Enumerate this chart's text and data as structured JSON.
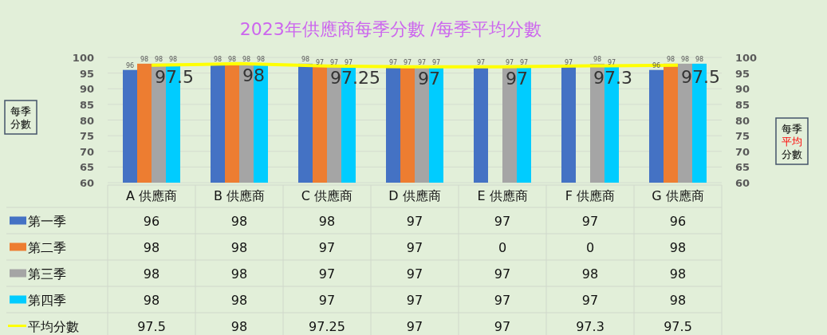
{
  "chart_data": {
    "type": "bar",
    "title": "2023年供應商每季分數 /每季平均分數",
    "ylabel": "每季分數",
    "y2label": "每季平均分數",
    "categories": [
      "A 供應商",
      "B 供應商",
      "C 供應商",
      "D 供應商",
      "E 供應商",
      "F 供應商",
      "G 供應商"
    ],
    "series": [
      {
        "name": "第一季",
        "color": "#4472c4",
        "values": [
          96,
          98,
          98,
          97,
          97,
          97,
          96
        ],
        "value_labels": [
          "96",
          "98",
          "98",
          "97",
          "97",
          "97",
          "96"
        ]
      },
      {
        "name": "第二季",
        "color": "#ed7d31",
        "values": [
          98,
          98,
          97,
          97,
          null,
          null,
          98
        ],
        "value_labels": [
          "98",
          "98",
          "97",
          "97",
          "0",
          "0",
          "98"
        ]
      },
      {
        "name": "第三季",
        "color": "#a5a5a5",
        "values": [
          98,
          98,
          97,
          97,
          97,
          98,
          98
        ],
        "value_labels": [
          "98",
          "98",
          "97",
          "97",
          "97",
          "98",
          "98"
        ]
      },
      {
        "name": "第四季",
        "color": "#00ccff",
        "values": [
          98,
          98,
          97,
          97,
          97,
          97,
          98
        ],
        "value_labels": [
          "98",
          "98",
          "97",
          "97",
          "97",
          "97",
          "98"
        ]
      },
      {
        "name": "平均分數",
        "type": "line",
        "axis": "y2",
        "color": "#ffff00",
        "values": [
          97.5,
          98,
          97.25,
          97,
          97,
          97.3,
          97.5
        ],
        "value_labels": [
          "97.5",
          "98",
          "97.25",
          "97",
          "97",
          "97.3",
          "97.5"
        ]
      }
    ],
    "annotations": [
      {
        "text": "96",
        "x": "A 供應商",
        "y": 96
      },
      {
        "text": "98",
        "x": "A 供應商",
        "y": 98
      },
      {
        "text": "98",
        "x": "A 供應商",
        "y": 98
      },
      {
        "text": "98",
        "x": "A 供應商",
        "y": 98
      },
      {
        "text": "97.5",
        "x": "A 供應商",
        "y": 97.5
      },
      {
        "text": "98",
        "x": "B 供應商",
        "y": 98
      },
      {
        "text": "98",
        "x": "B 供應商",
        "y": 98
      },
      {
        "text": "98",
        "x": "B 供應商",
        "y": 98
      },
      {
        "text": "98",
        "x": "B 供應商",
        "y": 98
      },
      {
        "text": "98",
        "x": "B 供應商",
        "y": 98
      },
      {
        "text": "98",
        "x": "C 供應商",
        "y": 98
      },
      {
        "text": "97",
        "x": "C 供應商",
        "y": 97
      },
      {
        "text": "97",
        "x": "C 供應商",
        "y": 97
      },
      {
        "text": "97",
        "x": "C 供應商",
        "y": 97
      },
      {
        "text": "97.25",
        "x": "C 供應商",
        "y": 97.25
      },
      {
        "text": "97",
        "x": "D 供應商",
        "y": 97
      },
      {
        "text": "97",
        "x": "D 供應商",
        "y": 97
      },
      {
        "text": "97",
        "x": "D 供應商",
        "y": 97
      },
      {
        "text": "97",
        "x": "D 供應商",
        "y": 97
      },
      {
        "text": "97",
        "x": "D 供應商",
        "y": 97
      },
      {
        "text": "97",
        "x": "E 供應商",
        "y": 97
      },
      {
        "text": "97",
        "x": "E 供應商",
        "y": 97
      },
      {
        "text": "97",
        "x": "E 供應商",
        "y": 97
      },
      {
        "text": "97",
        "x": "E 供應商",
        "y": 97
      },
      {
        "text": "97",
        "x": "F 供應商",
        "y": 97
      },
      {
        "text": "98",
        "x": "F 供應商",
        "y": 98
      },
      {
        "text": "97",
        "x": "F 供應商",
        "y": 97
      },
      {
        "text": "97.3",
        "x": "F 供應商",
        "y": 97.3
      },
      {
        "text": "96",
        "x": "G 供應商",
        "y": 96
      },
      {
        "text": "98",
        "x": "G 供應商",
        "y": 98
      },
      {
        "text": "98",
        "x": "G 供應商",
        "y": 98
      },
      {
        "text": "98",
        "x": "G 供應商",
        "y": 98
      },
      {
        "text": "97.5",
        "x": "G 供應商",
        "y": 97.5
      }
    ],
    "ylim": [
      60,
      100
    ],
    "yticks": [
      60,
      65,
      70,
      75,
      80,
      85,
      90,
      95,
      100
    ],
    "y2lim": [
      60,
      100
    ],
    "y2ticks": [
      60,
      65,
      70,
      75,
      80,
      85,
      90,
      95,
      100
    ],
    "data_labels": true,
    "grid": "y",
    "legend": "bottom",
    "marker": "none"
  }
}
